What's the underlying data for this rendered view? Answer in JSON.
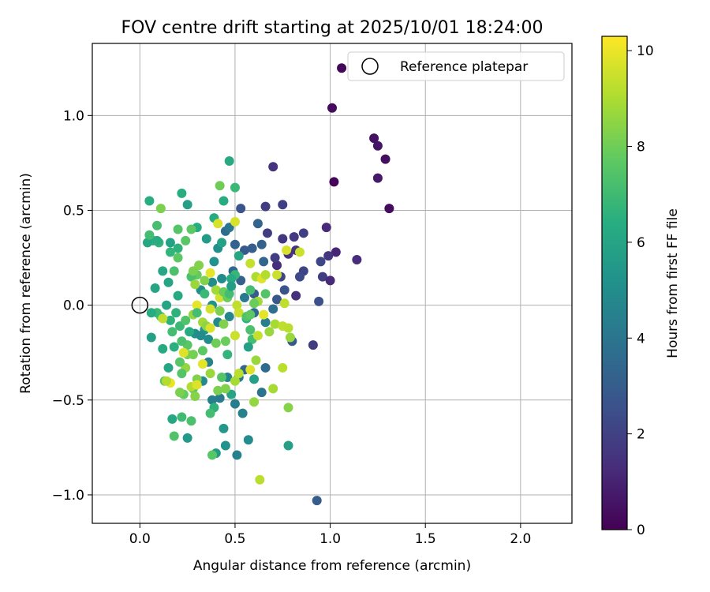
{
  "chart_data": {
    "type": "scatter",
    "title": "FOV centre drift starting at 2025/10/01 18:24:00",
    "xlabel": "Angular distance from reference (arcmin)",
    "ylabel": "Rotation from reference (arcmin)",
    "xlim": [
      -0.25,
      2.27
    ],
    "ylim": [
      -1.15,
      1.38
    ],
    "xticks": [
      0.0,
      0.5,
      1.0,
      1.5,
      2.0
    ],
    "xtick_labels": [
      "0.0",
      "0.5",
      "1.0",
      "1.5",
      "2.0"
    ],
    "yticks": [
      -1.0,
      -0.5,
      0.0,
      0.5,
      1.0
    ],
    "ytick_labels": [
      "−1.0",
      "−0.5",
      "0.0",
      "0.5",
      "1.0"
    ],
    "grid": true,
    "legend": {
      "position": "top-right",
      "label": "Reference platepar"
    },
    "reference_point": {
      "x": 0.0,
      "y": 0.0
    },
    "colorbar": {
      "label": "Hours from first FF file",
      "min": 0,
      "max": 10.3,
      "ticks": [
        0,
        2,
        4,
        6,
        8,
        10
      ],
      "tick_labels": [
        "0",
        "2",
        "4",
        "6",
        "8",
        "10"
      ],
      "colormap": "viridis"
    },
    "columns": [
      "x",
      "y",
      "hours"
    ],
    "points": [
      [
        1.06,
        1.25,
        0.2
      ],
      [
        1.01,
        1.04,
        0.3
      ],
      [
        1.23,
        0.88,
        0.5
      ],
      [
        1.25,
        0.84,
        0.6
      ],
      [
        1.29,
        0.77,
        0.4
      ],
      [
        1.25,
        0.67,
        0.7
      ],
      [
        1.31,
        0.51,
        0.3
      ],
      [
        1.02,
        0.65,
        0.1
      ],
      [
        0.7,
        0.73,
        1.5
      ],
      [
        0.75,
        0.53,
        1.9
      ],
      [
        0.66,
        0.52,
        1.8
      ],
      [
        0.98,
        0.41,
        1.2
      ],
      [
        0.86,
        0.38,
        1.9
      ],
      [
        0.81,
        0.36,
        1.7
      ],
      [
        0.75,
        0.35,
        1.6
      ],
      [
        0.67,
        0.38,
        1.8
      ],
      [
        1.14,
        0.24,
        1.3
      ],
      [
        1.03,
        0.28,
        1.1
      ],
      [
        0.99,
        0.26,
        1.6
      ],
      [
        0.95,
        0.23,
        2.2
      ],
      [
        0.72,
        0.21,
        1.3
      ],
      [
        0.96,
        0.15,
        1.8
      ],
      [
        0.86,
        0.18,
        2.1
      ],
      [
        0.84,
        0.15,
        2.3
      ],
      [
        0.82,
        0.05,
        1.4
      ],
      [
        0.94,
        0.02,
        2.5
      ],
      [
        1.0,
        0.13,
        1.2
      ],
      [
        0.71,
        0.25,
        1.8
      ],
      [
        0.74,
        0.15,
        2.2
      ],
      [
        0.78,
        0.27,
        1.5
      ],
      [
        0.82,
        0.29,
        1.6
      ],
      [
        0.91,
        -0.21,
        1.8
      ],
      [
        0.76,
        0.08,
        2.6
      ],
      [
        0.72,
        0.03,
        2.8
      ],
      [
        0.8,
        -0.19,
        2.9
      ],
      [
        0.93,
        -1.03,
        3.0
      ],
      [
        0.55,
        0.29,
        2.9
      ],
      [
        0.64,
        0.32,
        3.2
      ],
      [
        0.62,
        0.43,
        3.3
      ],
      [
        0.65,
        0.23,
        3.4
      ],
      [
        0.59,
        0.3,
        3.0
      ],
      [
        0.53,
        0.51,
        2.7
      ],
      [
        0.45,
        0.39,
        3.6
      ],
      [
        0.47,
        0.41,
        4.0
      ],
      [
        0.5,
        0.32,
        3.3
      ],
      [
        0.6,
        0.06,
        3.0
      ],
      [
        0.53,
        0.13,
        3.2
      ],
      [
        0.49,
        0.18,
        3.5
      ],
      [
        0.6,
        -0.04,
        3.6
      ],
      [
        0.66,
        -0.09,
        4.4
      ],
      [
        0.55,
        0.04,
        4.1
      ],
      [
        0.7,
        -0.02,
        3.7
      ],
      [
        0.66,
        -0.33,
        3.6
      ],
      [
        0.55,
        -0.34,
        3.4
      ],
      [
        0.52,
        -0.38,
        4.3
      ],
      [
        0.64,
        -0.46,
        3.9
      ],
      [
        0.54,
        -0.57,
        4.5
      ],
      [
        0.5,
        -0.52,
        4.3
      ],
      [
        0.51,
        -0.79,
        4.5
      ],
      [
        0.57,
        -0.71,
        5.0
      ],
      [
        0.45,
        -0.74,
        5.2
      ],
      [
        0.4,
        -0.78,
        5.5
      ],
      [
        0.44,
        -0.65,
        5.4
      ],
      [
        0.25,
        -0.7,
        5.5
      ],
      [
        0.42,
        -0.49,
        4.2
      ],
      [
        0.46,
        -0.38,
        4.6
      ],
      [
        0.38,
        -0.5,
        4.4
      ],
      [
        0.33,
        -0.4,
        4.9
      ],
      [
        0.36,
        -0.3,
        4.5
      ],
      [
        0.36,
        -0.18,
        4.9
      ],
      [
        0.34,
        -0.13,
        5.3
      ],
      [
        0.29,
        -0.15,
        5.1
      ],
      [
        0.41,
        -0.09,
        4.8
      ],
      [
        0.47,
        -0.06,
        4.7
      ],
      [
        0.38,
        0.0,
        5.2
      ],
      [
        0.32,
        0.08,
        5.0
      ],
      [
        0.38,
        0.12,
        4.9
      ],
      [
        0.43,
        0.14,
        4.9
      ],
      [
        0.39,
        0.23,
        5.2
      ],
      [
        0.35,
        0.35,
        5.6
      ],
      [
        0.41,
        0.3,
        5.1
      ],
      [
        0.43,
        0.33,
        5.9
      ],
      [
        0.3,
        0.41,
        6.3
      ],
      [
        0.25,
        0.53,
        5.8
      ],
      [
        0.39,
        0.46,
        6.3
      ],
      [
        0.44,
        0.55,
        6.3
      ],
      [
        0.47,
        0.76,
        6.2
      ],
      [
        0.5,
        0.62,
        6.9
      ],
      [
        0.52,
        0.26,
        6.0
      ],
      [
        0.5,
        0.16,
        6.8
      ],
      [
        0.58,
        0.08,
        7.1
      ],
      [
        0.56,
        -0.07,
        6.6
      ],
      [
        0.58,
        -0.13,
        7.3
      ],
      [
        0.59,
        -0.18,
        7.1
      ],
      [
        0.57,
        -0.22,
        5.8
      ],
      [
        0.6,
        -0.39,
        5.8
      ],
      [
        0.48,
        -0.47,
        6.0
      ],
      [
        0.43,
        -0.38,
        7.5
      ],
      [
        0.39,
        -0.54,
        6.6
      ],
      [
        0.37,
        -0.57,
        7.1
      ],
      [
        0.38,
        -0.79,
        7.6
      ],
      [
        0.27,
        -0.61,
        7.3
      ],
      [
        0.22,
        -0.59,
        7.0
      ],
      [
        0.18,
        -0.69,
        7.4
      ],
      [
        0.17,
        -0.6,
        6.1
      ],
      [
        0.13,
        -0.4,
        7.7
      ],
      [
        0.15,
        -0.33,
        6.1
      ],
      [
        0.12,
        -0.23,
        6.2
      ],
      [
        0.18,
        -0.22,
        6.5
      ],
      [
        0.23,
        -0.47,
        7.8
      ],
      [
        0.28,
        -0.44,
        7.6
      ],
      [
        0.29,
        -0.48,
        8.4
      ],
      [
        0.3,
        -0.39,
        8.3
      ],
      [
        0.24,
        -0.33,
        8.6
      ],
      [
        0.25,
        -0.26,
        8.2
      ],
      [
        0.25,
        -0.21,
        7.6
      ],
      [
        0.22,
        -0.19,
        7.3
      ],
      [
        0.17,
        -0.14,
        7.1
      ],
      [
        0.21,
        -0.11,
        6.9
      ],
      [
        0.16,
        -0.08,
        6.6
      ],
      [
        0.11,
        -0.06,
        7.3
      ],
      [
        0.09,
        -0.04,
        6.9
      ],
      [
        0.06,
        -0.17,
        5.8
      ],
      [
        0.06,
        -0.04,
        6.3
      ],
      [
        0.19,
        -0.04,
        6.6
      ],
      [
        0.14,
        0.0,
        6.0
      ],
      [
        0.2,
        0.05,
        6.2
      ],
      [
        0.08,
        0.09,
        6.0
      ],
      [
        0.15,
        0.12,
        6.0
      ],
      [
        0.12,
        0.18,
        6.1
      ],
      [
        0.18,
        0.18,
        7.3
      ],
      [
        0.2,
        0.3,
        6.6
      ],
      [
        0.16,
        0.28,
        6.7
      ],
      [
        0.2,
        0.25,
        7.7
      ],
      [
        0.16,
        0.33,
        5.9
      ],
      [
        0.1,
        0.33,
        6.7
      ],
      [
        0.09,
        0.34,
        6.3
      ],
      [
        0.07,
        0.34,
        6.4
      ],
      [
        0.04,
        0.33,
        6.1
      ],
      [
        0.05,
        0.37,
        7.1
      ],
      [
        0.09,
        0.42,
        7.2
      ],
      [
        0.05,
        0.55,
        6.4
      ],
      [
        0.11,
        0.51,
        8.2
      ],
      [
        0.22,
        0.59,
        6.4
      ],
      [
        0.2,
        0.4,
        7.5
      ],
      [
        0.27,
        0.4,
        7.7
      ],
      [
        0.24,
        0.34,
        7.6
      ],
      [
        0.3,
        0.16,
        7.8
      ],
      [
        0.27,
        0.15,
        7.3
      ],
      [
        0.34,
        0.13,
        8.3
      ],
      [
        0.29,
        0.11,
        8.7
      ],
      [
        0.34,
        0.06,
        6.9
      ],
      [
        0.3,
        0.0,
        9.9
      ],
      [
        0.37,
        -0.02,
        9.6
      ],
      [
        0.28,
        -0.05,
        8.6
      ],
      [
        0.24,
        -0.08,
        7.4
      ],
      [
        0.33,
        -0.09,
        8.8
      ],
      [
        0.35,
        -0.11,
        8.5
      ],
      [
        0.37,
        -0.12,
        9.7
      ],
      [
        0.42,
        -0.03,
        8.2
      ],
      [
        0.42,
        0.04,
        9.6
      ],
      [
        0.46,
        0.04,
        7.9
      ],
      [
        0.51,
        0.0,
        9.3
      ],
      [
        0.52,
        -0.04,
        9.5
      ],
      [
        0.44,
        -0.1,
        8.3
      ],
      [
        0.5,
        -0.16,
        9.5
      ],
      [
        0.45,
        -0.19,
        7.9
      ],
      [
        0.4,
        -0.2,
        8.0
      ],
      [
        0.33,
        -0.24,
        7.7
      ],
      [
        0.28,
        -0.26,
        8.1
      ],
      [
        0.23,
        -0.25,
        9.8
      ],
      [
        0.21,
        -0.3,
        7.6
      ],
      [
        0.22,
        -0.36,
        7.5
      ],
      [
        0.21,
        -0.46,
        8.2
      ],
      [
        0.27,
        -0.43,
        9.1
      ],
      [
        0.3,
        -0.42,
        9.8
      ],
      [
        0.33,
        -0.31,
        9.9
      ],
      [
        0.37,
        -0.36,
        8.7
      ],
      [
        0.41,
        -0.45,
        8.2
      ],
      [
        0.45,
        -0.44,
        8.3
      ],
      [
        0.5,
        -0.4,
        8.9
      ],
      [
        0.52,
        -0.36,
        9.2
      ],
      [
        0.58,
        -0.34,
        9.8
      ],
      [
        0.61,
        -0.29,
        8.7
      ],
      [
        0.6,
        -0.51,
        8.6
      ],
      [
        0.7,
        -0.44,
        8.9
      ],
      [
        0.75,
        -0.33,
        9.2
      ],
      [
        0.68,
        -0.14,
        8.7
      ],
      [
        0.62,
        -0.16,
        9.4
      ],
      [
        0.65,
        -0.05,
        9.9
      ],
      [
        0.71,
        -0.1,
        8.9
      ],
      [
        0.75,
        -0.11,
        9.3
      ],
      [
        0.78,
        -0.12,
        9.2
      ],
      [
        0.79,
        -0.17,
        8.7
      ],
      [
        0.78,
        -0.54,
        8.4
      ],
      [
        0.63,
        -0.92,
        9.2
      ],
      [
        0.16,
        -0.41,
        10.0
      ],
      [
        0.14,
        -0.4,
        9.1
      ],
      [
        0.12,
        -0.07,
        9.3
      ],
      [
        0.78,
        -0.74,
        5.8
      ],
      [
        0.58,
        0.22,
        9.4
      ],
      [
        0.61,
        0.15,
        9.0
      ],
      [
        0.62,
        0.02,
        8.8
      ],
      [
        0.64,
        0.14,
        9.8
      ],
      [
        0.66,
        0.16,
        9.1
      ],
      [
        0.72,
        0.16,
        9.5
      ],
      [
        0.76,
        0.01,
        9.3
      ],
      [
        0.77,
        0.29,
        9.7
      ],
      [
        0.84,
        0.28,
        9.5
      ],
      [
        0.66,
        0.06,
        7.5
      ],
      [
        0.6,
        0.01,
        7.9
      ],
      [
        0.56,
        -0.06,
        7.4
      ],
      [
        0.58,
        -0.05,
        7.7
      ],
      [
        0.41,
        0.43,
        9.7
      ],
      [
        0.42,
        0.63,
        8.0
      ],
      [
        0.5,
        0.44,
        9.7
      ],
      [
        0.37,
        0.17,
        9.9
      ],
      [
        0.4,
        0.08,
        8.8
      ],
      [
        0.44,
        0.07,
        7.9
      ],
      [
        0.47,
        0.06,
        7.1
      ],
      [
        0.48,
        0.14,
        6.3
      ],
      [
        0.48,
        0.1,
        5.7
      ],
      [
        0.31,
        0.21,
        8.3
      ],
      [
        0.28,
        0.18,
        8.2
      ],
      [
        0.26,
        -0.14,
        6.3
      ],
      [
        0.3,
        -0.04,
        7.1
      ],
      [
        0.32,
        -0.16,
        4.9
      ],
      [
        0.46,
        -0.26,
        6.7
      ]
    ]
  }
}
